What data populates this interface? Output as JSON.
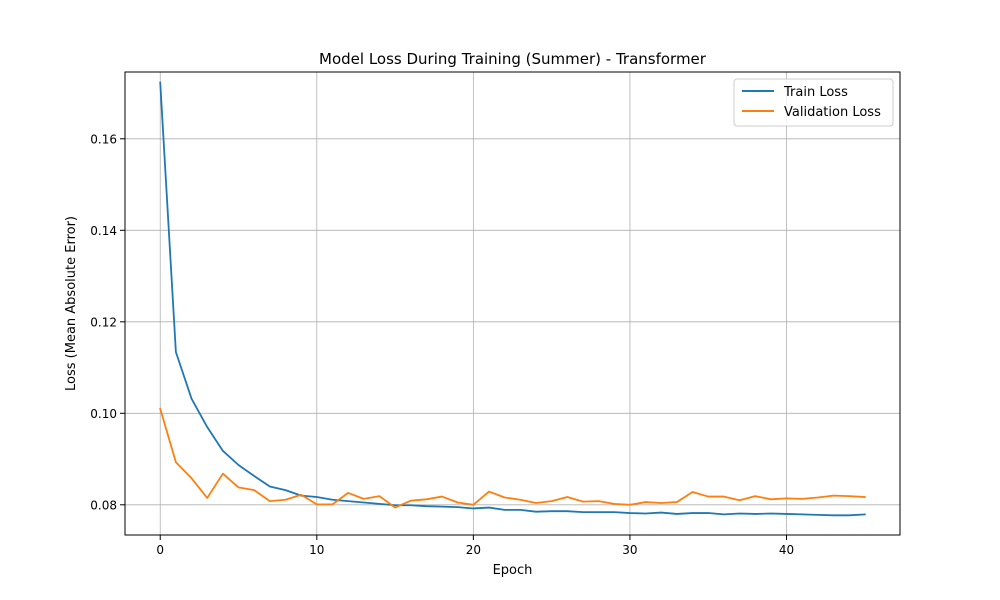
{
  "chart_data": {
    "type": "line",
    "title": "Model Loss During Training (Summer) - Transformer",
    "xlabel": "Epoch",
    "ylabel": "Loss (Mean Absolute Error)",
    "xlim": [
      -2.25,
      47.25
    ],
    "ylim": [
      0.0734,
      0.1746
    ],
    "xticks": [
      0,
      10,
      20,
      30,
      40
    ],
    "yticks": [
      0.08,
      0.1,
      0.12,
      0.14,
      0.16
    ],
    "xtick_labels": [
      "0",
      "10",
      "20",
      "30",
      "40"
    ],
    "ytick_labels": [
      "0.08",
      "0.10",
      "0.12",
      "0.14",
      "0.16"
    ],
    "grid": true,
    "legend_position": "top-right",
    "x": [
      0,
      1,
      2,
      3,
      4,
      5,
      6,
      7,
      8,
      9,
      10,
      11,
      12,
      13,
      14,
      15,
      16,
      17,
      18,
      19,
      20,
      21,
      22,
      23,
      24,
      25,
      26,
      27,
      28,
      29,
      30,
      31,
      32,
      33,
      34,
      35,
      36,
      37,
      38,
      39,
      40,
      41,
      42,
      43,
      44,
      45
    ],
    "series": [
      {
        "name": "Train Loss",
        "color": "#1f77b4",
        "values": [
          0.1723,
          0.1134,
          0.1032,
          0.097,
          0.0918,
          0.0887,
          0.0863,
          0.084,
          0.0832,
          0.082,
          0.0817,
          0.0811,
          0.0808,
          0.0805,
          0.0802,
          0.0799,
          0.0799,
          0.0797,
          0.0796,
          0.0795,
          0.0792,
          0.0794,
          0.0789,
          0.0789,
          0.0785,
          0.0786,
          0.0786,
          0.0784,
          0.0784,
          0.0784,
          0.0782,
          0.0781,
          0.0783,
          0.078,
          0.0782,
          0.0782,
          0.0779,
          0.0781,
          0.078,
          0.0781,
          0.078,
          0.0779,
          0.0778,
          0.0777,
          0.0777,
          0.0779
        ]
      },
      {
        "name": "Validation Loss",
        "color": "#ff7f0e",
        "values": [
          0.101,
          0.0893,
          0.0858,
          0.0815,
          0.0868,
          0.0838,
          0.0832,
          0.0808,
          0.0811,
          0.0822,
          0.0801,
          0.0801,
          0.0826,
          0.0813,
          0.0819,
          0.0794,
          0.0809,
          0.0812,
          0.0818,
          0.0805,
          0.08,
          0.0829,
          0.0816,
          0.0811,
          0.0804,
          0.0808,
          0.0817,
          0.0807,
          0.0808,
          0.0802,
          0.08,
          0.0806,
          0.0804,
          0.0806,
          0.0828,
          0.0818,
          0.0818,
          0.081,
          0.0819,
          0.0812,
          0.0814,
          0.0813,
          0.0816,
          0.082,
          0.0819,
          0.0817
        ]
      }
    ]
  }
}
